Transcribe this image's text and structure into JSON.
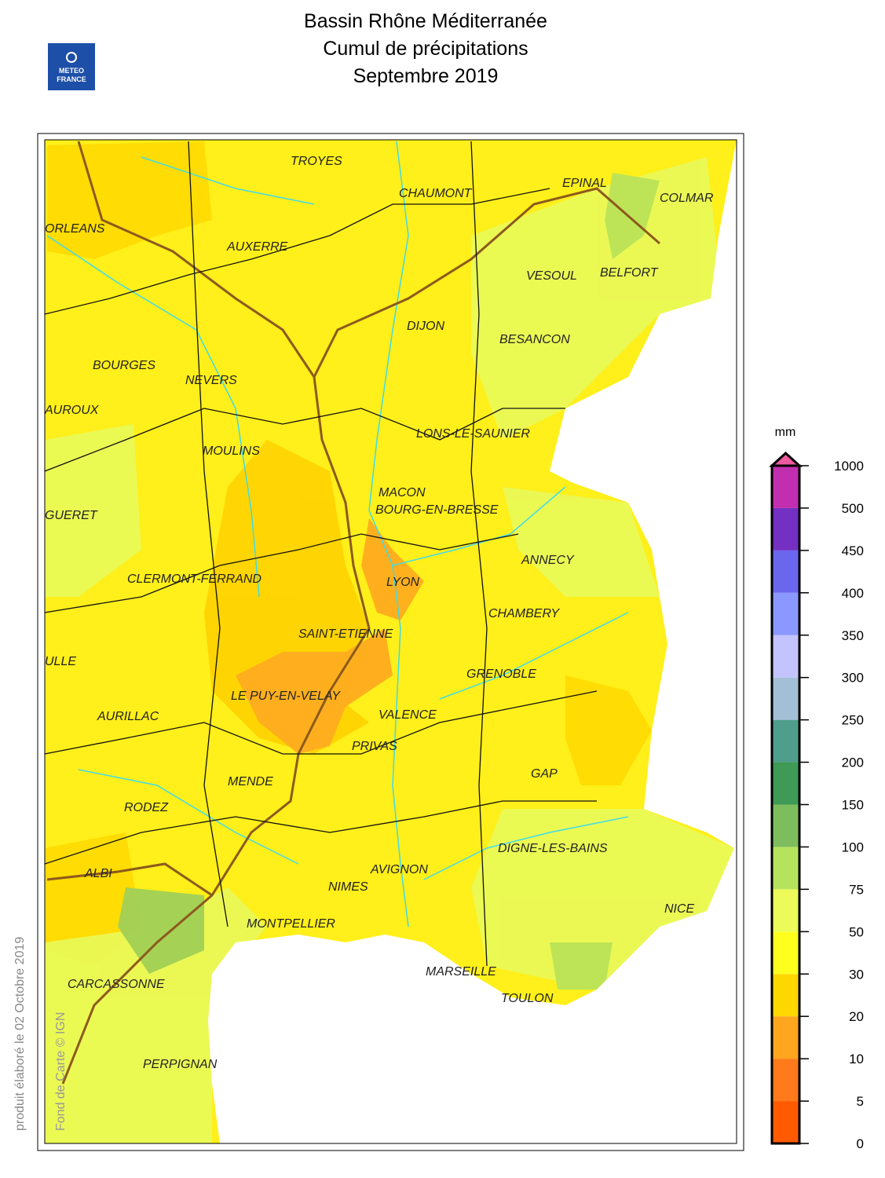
{
  "header": {
    "title_lines": [
      "Bassin Rhône Méditerranée",
      "Cumul de précipitations",
      "Septembre 2019"
    ],
    "logo": [
      "METEO",
      "FRANCE"
    ]
  },
  "map": {
    "cities": [
      "TROYES",
      "CHAUMONT",
      "EPINAL",
      "COLMAR",
      "ORLEANS",
      "AUXERRE",
      "VESOUL",
      "BELFORT",
      "DIJON",
      "BESANCON",
      "BOURGES",
      "NEVERS",
      "AUROUX",
      "LONS-LE-SAUNIER",
      "MOULINS",
      "MACON",
      "BOURG-EN-BRESSE",
      "GUERET",
      "ANNECY",
      "CLERMONT-FERRAND",
      "LYON",
      "CHAMBERY",
      "SAINT-ETIENNE",
      "ULLE",
      "GRENOBLE",
      "LE PUY-EN-VELAY",
      "AURILLAC",
      "VALENCE",
      "PRIVAS",
      "GAP",
      "MENDE",
      "RODEZ",
      "DIGNE-LES-BAINS",
      "ALBI",
      "AVIGNON",
      "NIMES",
      "NICE",
      "MONTPELLIER",
      "MARSEILLE",
      "CARCASSONNE",
      "TOULON",
      "PERPIGNAN"
    ],
    "side_note": "produit élaboré le 02 Octobre 2019",
    "credit": "Fond de Carte © IGN"
  },
  "legend": {
    "unit": "mm",
    "ticks": [
      0,
      5,
      10,
      20,
      30,
      50,
      75,
      100,
      150,
      200,
      250,
      300,
      350,
      400,
      450,
      500,
      1000
    ],
    "colors": [
      "#ff5a00",
      "#ff7a1a",
      "#ffa51e",
      "#ffd800",
      "#ffff1e",
      "#ecfb5a",
      "#b6e35e",
      "#7dbd5e",
      "#3e9a55",
      "#4f9e8c",
      "#a3bfd6",
      "#c3c3ff",
      "#8a98ff",
      "#6a66ee",
      "#7430c2",
      "#c22eb0"
    ],
    "overflow_color": "#ee5aa0"
  }
}
